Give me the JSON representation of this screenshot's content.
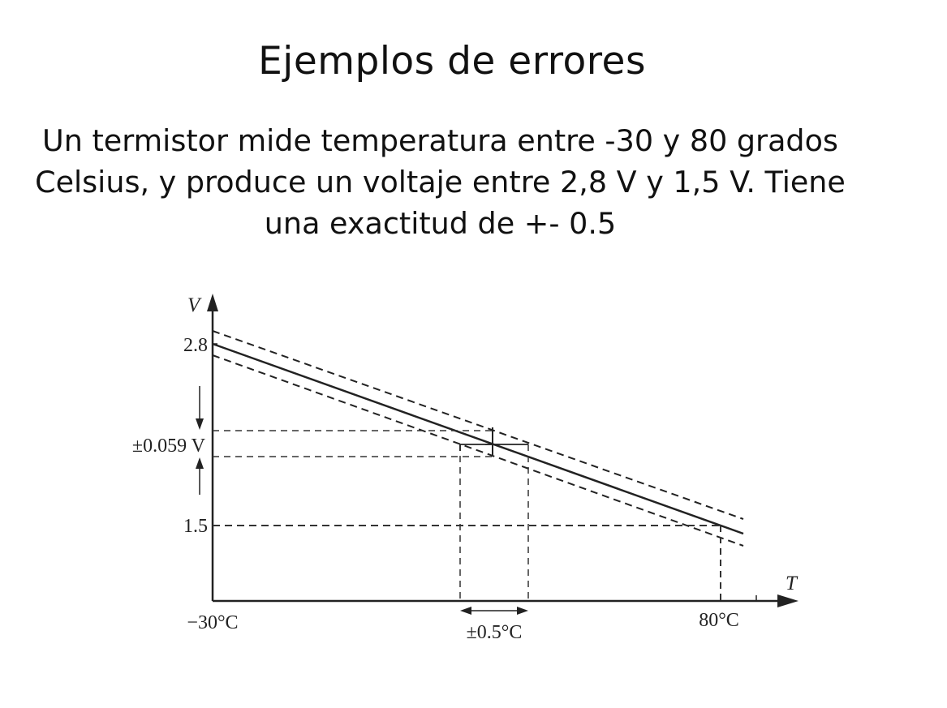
{
  "slide": {
    "title": "Ejemplos de errores",
    "body": "Un termistor mide temperatura entre -30 y 80 grados Celsius, y produce un voltaje entre 2,8 V y 1,5 V. Tiene una exactitud de +- 0.5"
  },
  "diagram": {
    "y_axis_label": "V",
    "x_axis_label": "T",
    "v_high_label": "2.8",
    "v_low_label": "1.5",
    "voltage_error_label": "±0.059 V",
    "t_low_label": "−30°C",
    "t_high_label": "80°C",
    "temp_error_label": "±0.5°C",
    "line_color": "#222222"
  }
}
